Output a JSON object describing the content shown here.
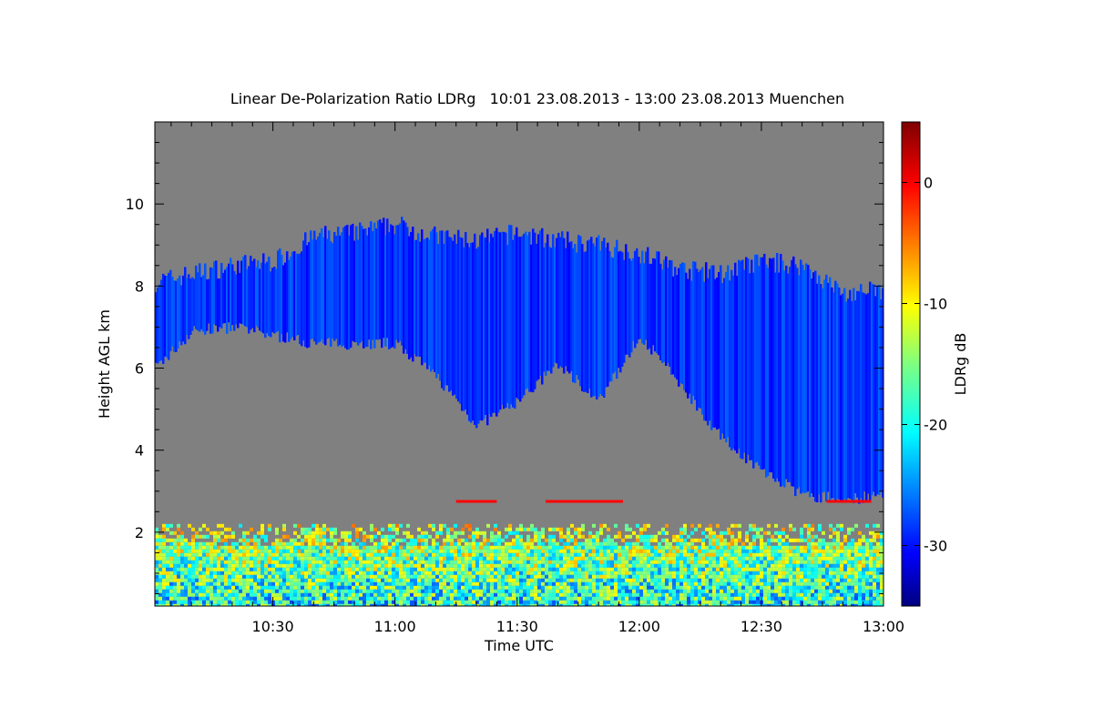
{
  "chart_data": {
    "type": "heatmap",
    "title": "Linear De-Polarization Ratio LDRg   10:01 23.08.2013 - 13:00 23.08.2013 Muenchen",
    "xlabel": "Time UTC",
    "ylabel": "Height AGL km",
    "colorbar_label": "LDRg dB",
    "x_ticks": [
      "10:30",
      "11:00",
      "11:30",
      "12:00",
      "12:30",
      "13:00"
    ],
    "x_tick_minutes": [
      30,
      60,
      90,
      120,
      150,
      180
    ],
    "xlim_minutes": [
      1,
      180
    ],
    "y_ticks": [
      2,
      4,
      6,
      8,
      10
    ],
    "ylim": [
      0.2,
      12
    ],
    "colorbar_ticks": [
      0,
      -10,
      -20,
      -30
    ],
    "colorbar_range": [
      -35,
      5
    ],
    "colormap": "jet",
    "no_data_color": "#808080",
    "cloud_layer": {
      "description": "Upper cirrus cloud band, roughly 5–9.5 km, LDRg about -25 to -30 dB",
      "time_minutes": [
        1,
        10,
        20,
        30,
        40,
        50,
        60,
        70,
        80,
        90,
        100,
        110,
        120,
        130,
        140,
        150,
        160,
        170,
        180
      ],
      "top_km": [
        8.1,
        8.3,
        8.5,
        8.6,
        9.2,
        9.3,
        9.5,
        9.2,
        9.1,
        9.3,
        9.1,
        9.0,
        8.8,
        8.4,
        8.3,
        8.6,
        8.5,
        7.8,
        7.9
      ],
      "base_km": [
        6.0,
        6.9,
        7.0,
        6.8,
        6.6,
        6.6,
        6.6,
        5.8,
        4.6,
        5.2,
        6.1,
        5.2,
        6.8,
        5.6,
        4.3,
        3.5,
        2.9,
        2.8,
        2.9
      ],
      "typical_ldr_db": -28
    },
    "boundary_layer": {
      "description": "Near-ground aerosol layer up to about 2.2 km, LDRg mostly -25 to -5 dB",
      "top_km": 2.2,
      "base_km": 0.2,
      "ldr_db_range": [
        -30,
        -2
      ]
    },
    "scatter_line": {
      "height_km": 2.75,
      "ldr_db": 0,
      "time_ranges_minutes": [
        [
          75,
          85
        ],
        [
          97,
          116
        ],
        [
          166,
          177
        ]
      ]
    }
  }
}
